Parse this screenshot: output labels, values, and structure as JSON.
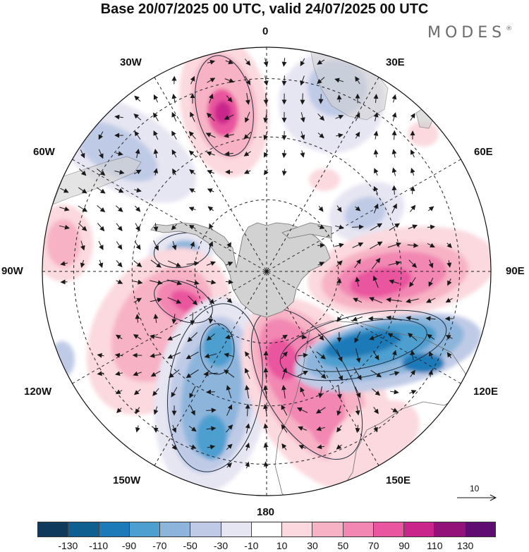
{
  "header": {
    "title": "Base 20/07/2025 00 UTC, valid 24/07/2025 00 UTC",
    "brand": "MODES",
    "brand_mark": "®"
  },
  "map": {
    "projection": "south polar stereographic",
    "longitude_labels": {
      "top": "0",
      "top_right": "30E",
      "right_upper": "60E",
      "right": "90E",
      "right_lower": "120E",
      "bottom_right": "150E",
      "bottom": "180",
      "bottom_left": "150W",
      "left_lower": "120W",
      "left": "90W",
      "left_upper": "60W",
      "top_left": "30W"
    },
    "reference_vector": {
      "label": "10"
    },
    "colors": {
      "land": "#d2d2d2",
      "coast": "#6f6f6f",
      "arrow": "#1a1a1a",
      "grid": "#222222"
    }
  },
  "colorbar": {
    "colors": [
      "#0f3a5c",
      "#105f91",
      "#1d7ab8",
      "#4d9fd0",
      "#8db5dc",
      "#bfcbe6",
      "#e6e5f2",
      "#ffffff",
      "#fbd9de",
      "#f7b3c5",
      "#f287b3",
      "#e9559e",
      "#c9258b",
      "#93127a",
      "#5f0d70"
    ],
    "tick_labels": [
      "-130",
      "-110",
      "-90",
      "-70",
      "-50",
      "-30",
      "-10",
      "10",
      "30",
      "50",
      "70",
      "90",
      "110",
      "130"
    ]
  }
}
